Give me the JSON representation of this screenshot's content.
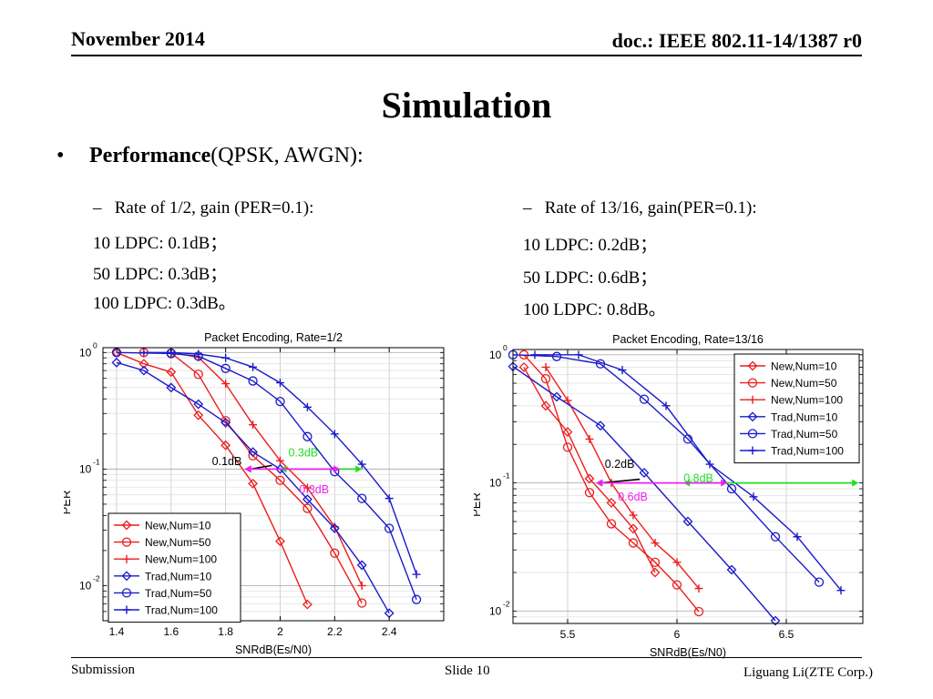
{
  "header": {
    "date": "November 2014",
    "doc": "doc.: IEEE 802.11-14/1387 r0"
  },
  "title": "Simulation",
  "bullet": {
    "symbol": "•",
    "bold": "Performance",
    "rest": "(QPSK, AWGN):"
  },
  "left_notes": {
    "heading": "–   Rate of 1/2, gain (PER=0.1):",
    "lines": [
      "10 LDPC: 0.1dB；",
      "50 LDPC: 0.3dB；",
      "100 LDPC: 0.3dB。"
    ]
  },
  "right_notes": {
    "heading": "–   Rate of 13/16, gain(PER=0.1):",
    "lines": [
      "10 LDPC: 0.2dB；",
      "50 LDPC: 0.6dB；",
      "100 LDPC: 0.8dB。"
    ]
  },
  "footer": {
    "left": "Submission",
    "center": "Slide 10",
    "right": "Liguang Li(ZTE Corp.)"
  },
  "colors": {
    "new": "#ee1c1c",
    "trad": "#1a1acc",
    "green": "#22dd22",
    "magenta": "#ee22ee"
  },
  "chart_data": [
    {
      "type": "line",
      "title": "Packet Encoding, Rate=1/2",
      "xlabel": "SNRdB(Es/N0)",
      "ylabel": "PER",
      "xlim": [
        1.35,
        2.6
      ],
      "ylim": [
        0.005,
        1.1
      ],
      "yscale": "log",
      "xticks": [
        1.4,
        1.6,
        1.8,
        2,
        2.2,
        2.4
      ],
      "xtick_labels": [
        "1.4",
        "1.6",
        "1.8",
        "2",
        "2.2",
        "2.4"
      ],
      "ytick_labels": [
        "10",
        "10",
        "10"
      ],
      "ytick_exponents": [
        "0",
        "-1",
        "-2"
      ],
      "legend_position": "bottom-left",
      "series": [
        {
          "name": "New,Num=10",
          "marker": "diamond",
          "group": "new",
          "x": [
            1.4,
            1.5,
            1.6,
            1.7,
            1.8,
            1.9,
            2.0,
            2.1
          ],
          "y": [
            1.0,
            0.8,
            0.68,
            0.29,
            0.16,
            0.075,
            0.024,
            0.0069
          ]
        },
        {
          "name": "New,Num=50",
          "marker": "circle",
          "group": "new",
          "x": [
            1.5,
            1.6,
            1.7,
            1.8,
            1.9,
            2.0,
            2.1,
            2.2,
            2.3
          ],
          "y": [
            1.0,
            0.99,
            0.65,
            0.26,
            0.13,
            0.08,
            0.046,
            0.019,
            0.0071
          ]
        },
        {
          "name": "New,Num=100",
          "marker": "plus",
          "group": "new",
          "x": [
            1.6,
            1.7,
            1.8,
            1.9,
            2.0,
            2.1,
            2.2,
            2.3
          ],
          "y": [
            1.0,
            0.91,
            0.54,
            0.24,
            0.118,
            0.069,
            0.032,
            0.01
          ]
        },
        {
          "name": "Trad,Num=10",
          "marker": "diamond",
          "group": "trad",
          "x": [
            1.4,
            1.5,
            1.6,
            1.7,
            1.8,
            1.9,
            2.0,
            2.1,
            2.2,
            2.3,
            2.4
          ],
          "y": [
            0.82,
            0.7,
            0.5,
            0.36,
            0.25,
            0.14,
            0.1,
            0.055,
            0.031,
            0.015,
            0.0058
          ]
        },
        {
          "name": "Trad,Num=50",
          "marker": "circle",
          "group": "trad",
          "x": [
            1.4,
            1.6,
            1.7,
            1.8,
            1.9,
            2.0,
            2.1,
            2.2,
            2.3,
            2.4,
            2.5
          ],
          "y": [
            1.0,
            0.98,
            0.93,
            0.73,
            0.57,
            0.38,
            0.19,
            0.095,
            0.056,
            0.031,
            0.0076
          ]
        },
        {
          "name": "Trad,Num=100",
          "marker": "plus",
          "group": "trad",
          "x": [
            1.5,
            1.6,
            1.7,
            1.8,
            1.9,
            2.0,
            2.1,
            2.2,
            2.3,
            2.4,
            2.5
          ],
          "y": [
            1.0,
            1.0,
            0.97,
            0.9,
            0.75,
            0.55,
            0.34,
            0.2,
            0.11,
            0.056,
            0.0125
          ]
        }
      ],
      "annotations": [
        {
          "text": "0.1dB",
          "color": "black",
          "x1": 1.87,
          "x2": 1.97,
          "ytext": 0.108,
          "xtext": 1.75
        },
        {
          "text": "0.3dB",
          "color": "green",
          "x1": 2.0,
          "x2": 2.3,
          "ytext": 0.128,
          "xtext": 2.03
        },
        {
          "text": "0.3dB",
          "color": "magenta",
          "x1": 1.87,
          "x2": 2.22,
          "ytext": 0.062,
          "xtext": 2.07
        }
      ]
    },
    {
      "type": "line",
      "title": "Packet Encoding, Rate=13/16",
      "xlabel": "SNRdB(Es/N0)",
      "ylabel": "PER",
      "xlim": [
        5.25,
        6.85
      ],
      "ylim": [
        0.008,
        1.1
      ],
      "yscale": "log",
      "xticks": [
        5.5,
        6,
        6.5
      ],
      "xtick_labels": [
        "5.5",
        "6",
        "6.5"
      ],
      "ytick_labels": [
        "10",
        "10",
        "10"
      ],
      "ytick_exponents": [
        "0",
        "-1",
        "-2"
      ],
      "legend_position": "top-right",
      "series": [
        {
          "name": "New,Num=10",
          "marker": "diamond",
          "group": "new",
          "x": [
            5.3,
            5.4,
            5.5,
            5.6,
            5.7,
            5.8,
            5.9
          ],
          "y": [
            0.8,
            0.4,
            0.25,
            0.108,
            0.07,
            0.044,
            0.02
          ]
        },
        {
          "name": "New,Num=50",
          "marker": "circle",
          "group": "new",
          "x": [
            5.3,
            5.4,
            5.5,
            5.6,
            5.7,
            5.8,
            5.9,
            6.0,
            6.1
          ],
          "y": [
            1.0,
            0.65,
            0.19,
            0.084,
            0.048,
            0.034,
            0.024,
            0.016,
            0.0099
          ]
        },
        {
          "name": "New,Num=100",
          "marker": "plus",
          "group": "new",
          "x": [
            5.4,
            5.5,
            5.6,
            5.7,
            5.8,
            5.9,
            6.0,
            6.1
          ],
          "y": [
            0.8,
            0.44,
            0.22,
            0.1,
            0.056,
            0.034,
            0.024,
            0.015
          ]
        },
        {
          "name": "Trad,Num=10",
          "marker": "diamond",
          "group": "trad",
          "x": [
            5.25,
            5.45,
            5.65,
            5.85,
            6.05,
            6.25,
            6.45
          ],
          "y": [
            0.81,
            0.47,
            0.28,
            0.12,
            0.05,
            0.021,
            0.0084
          ]
        },
        {
          "name": "Trad,Num=50",
          "marker": "circle",
          "group": "trad",
          "x": [
            5.25,
            5.45,
            5.65,
            5.85,
            6.05,
            6.25,
            6.45,
            6.65
          ],
          "y": [
            1.0,
            0.97,
            0.85,
            0.45,
            0.22,
            0.09,
            0.038,
            0.0168
          ]
        },
        {
          "name": "Trad,Num=100",
          "marker": "plus",
          "group": "trad",
          "x": [
            5.35,
            5.55,
            5.75,
            5.95,
            6.15,
            6.35,
            6.55,
            6.75
          ],
          "y": [
            1.0,
            1.0,
            0.76,
            0.4,
            0.14,
            0.078,
            0.038,
            0.0145
          ]
        }
      ],
      "annotations": [
        {
          "text": "0.2dB",
          "color": "black",
          "x1": 5.63,
          "x2": 5.83,
          "ytext": 0.131,
          "xtext": 5.67
        },
        {
          "text": "0.8dB",
          "color": "green",
          "x1": 6.03,
          "x2": 6.83,
          "ytext": 0.102,
          "xtext": 6.03
        },
        {
          "text": "0.6dB",
          "color": "magenta",
          "x1": 5.63,
          "x2": 6.23,
          "ytext": 0.073,
          "xtext": 5.73
        }
      ]
    }
  ]
}
